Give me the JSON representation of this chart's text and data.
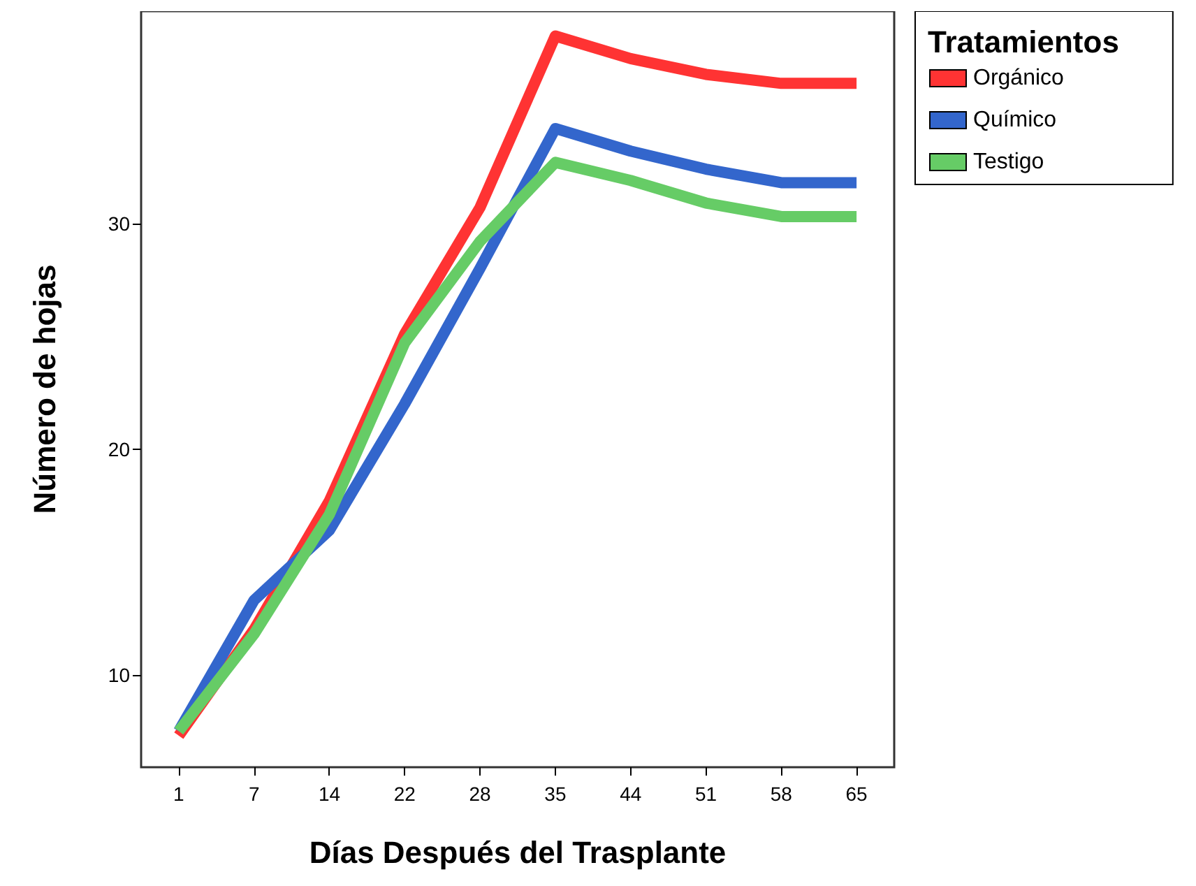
{
  "chart_data": {
    "type": "line",
    "xlabel": "Días Después del Trasplante",
    "ylabel": "Número de hojas",
    "legend_title": "Tratamientos",
    "categories": [
      "1",
      "7",
      "14",
      "22",
      "28",
      "35",
      "44",
      "51",
      "58",
      "65"
    ],
    "series": [
      {
        "name": "Orgánico",
        "color": "#ff3333",
        "values": [
          7.3,
          12.0,
          17.7,
          25.1,
          30.7,
          38.3,
          37.3,
          36.6,
          36.2,
          36.2
        ]
      },
      {
        "name": "Químico",
        "color": "#3366cc",
        "values": [
          7.5,
          13.3,
          16.4,
          22.0,
          28.0,
          34.2,
          33.2,
          32.4,
          31.8,
          31.8
        ]
      },
      {
        "name": "Testigo",
        "color": "#66cc66",
        "values": [
          7.5,
          11.8,
          17.1,
          24.7,
          29.2,
          32.7,
          31.9,
          30.9,
          30.3,
          30.3
        ]
      }
    ],
    "ylim": [
      5.9,
      39.4
    ],
    "yticks": [
      10,
      20,
      30
    ],
    "grid": false,
    "legend": "top right",
    "marker": "none",
    "line_style": "solid"
  }
}
